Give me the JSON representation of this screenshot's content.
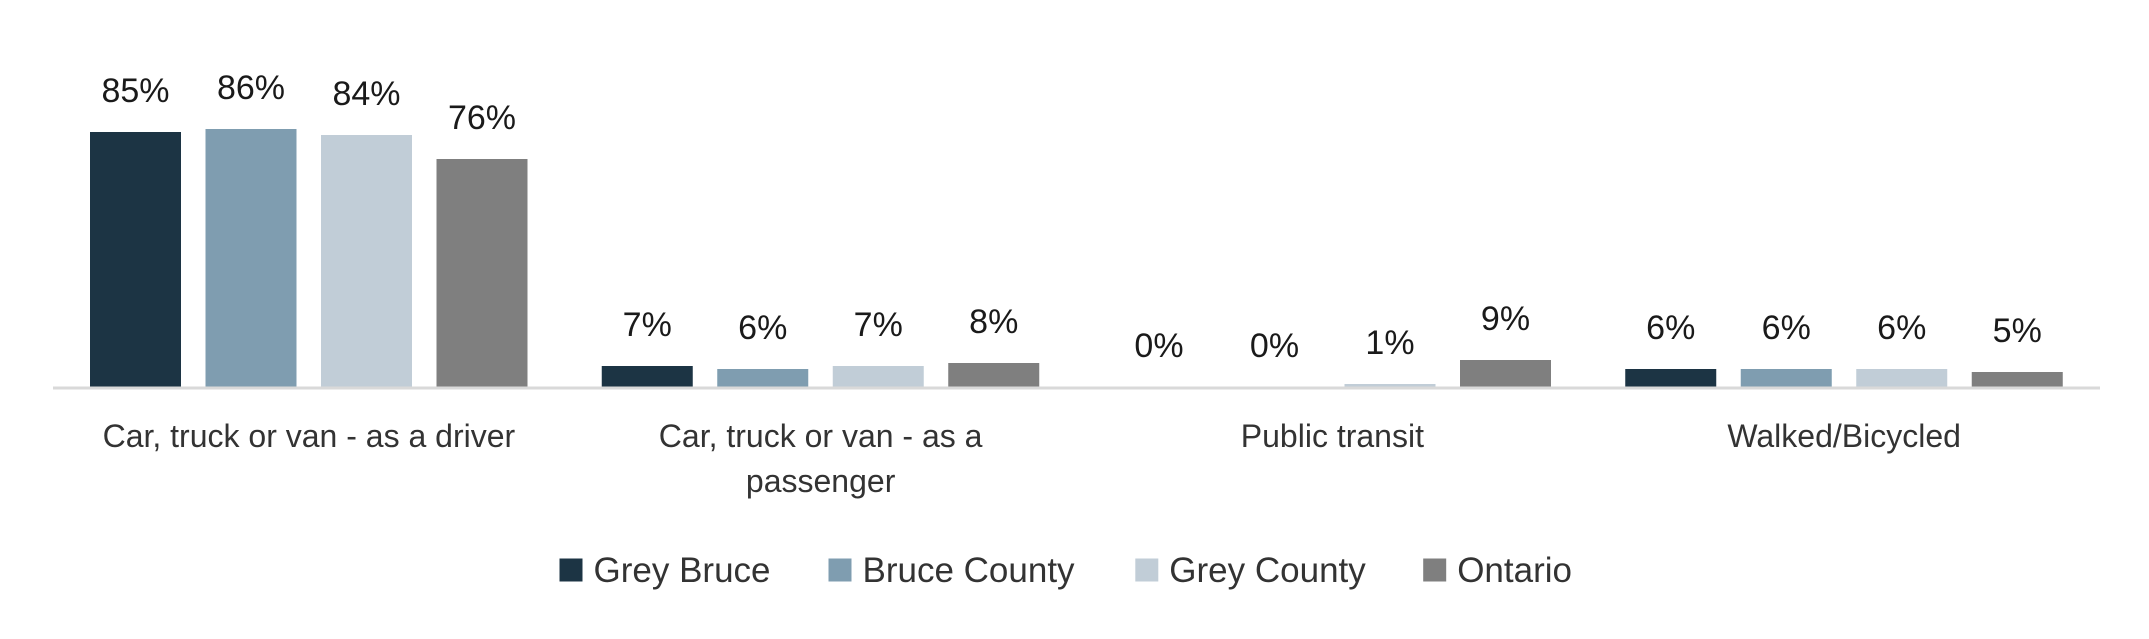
{
  "chart_data": {
    "type": "bar",
    "title": "",
    "xlabel": "",
    "ylabel": "",
    "ylim": [
      0,
      100
    ],
    "grid": false,
    "legend_position": "bottom",
    "value_suffix": "%",
    "categories": [
      [
        "Car, truck or van - as a driver"
      ],
      [
        "Car, truck or van - as a",
        "passenger"
      ],
      [
        "Public transit"
      ],
      [
        "Walked/Bicycled"
      ]
    ],
    "series": [
      {
        "name": "Grey Bruce",
        "color": "#1c3444",
        "values": [
          85,
          7,
          0,
          6
        ]
      },
      {
        "name": "Bruce County",
        "color": "#7f9db0",
        "values": [
          86,
          6,
          0,
          6
        ]
      },
      {
        "name": "Grey County",
        "color": "#c1cdd7",
        "values": [
          84,
          7,
          1,
          6
        ]
      },
      {
        "name": "Ontario",
        "color": "#7f7f7f",
        "values": [
          76,
          8,
          9,
          5
        ]
      }
    ]
  }
}
